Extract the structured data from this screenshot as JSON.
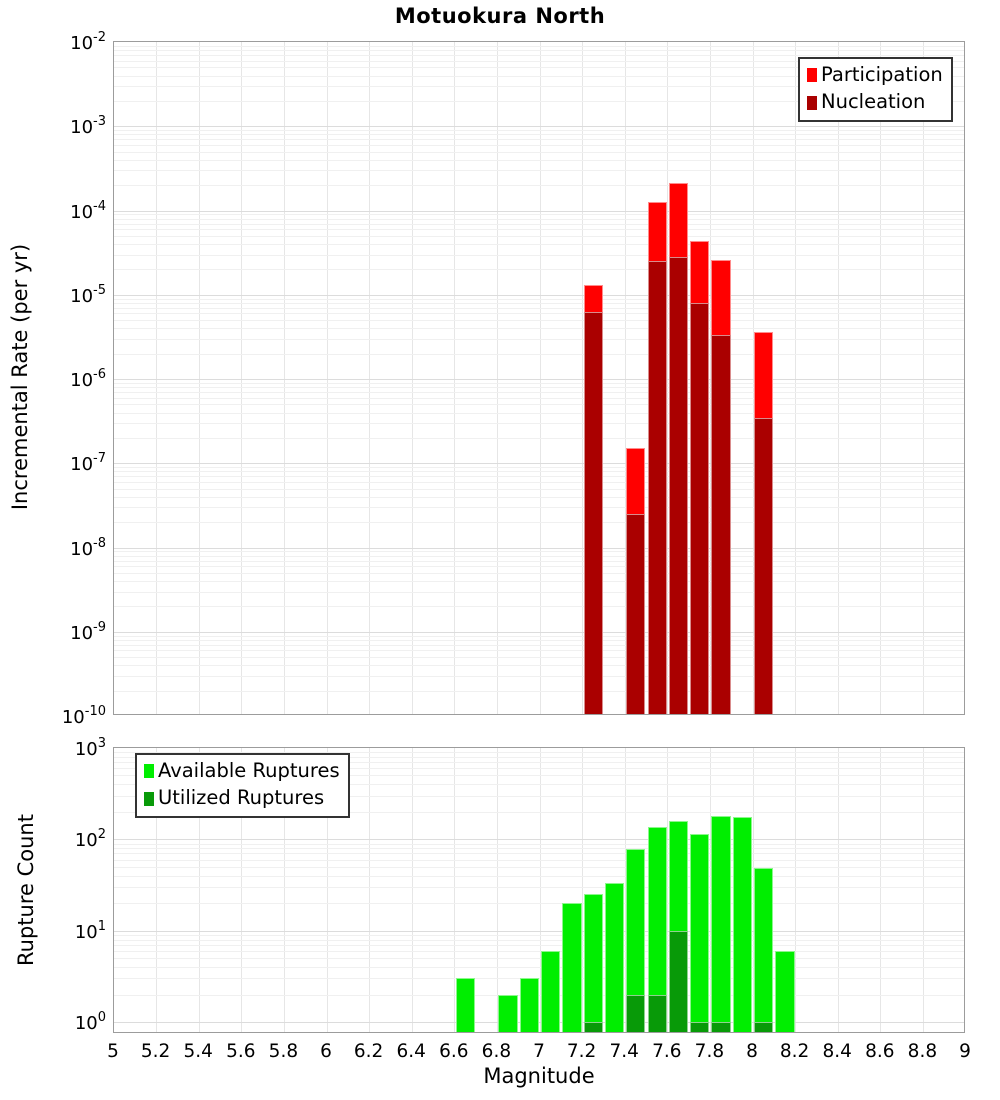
{
  "title": "Motuokura North",
  "colors": {
    "participation": "#FF0000",
    "nucleation": "#AA0000",
    "available": "#00EE00",
    "utilized": "#089A08",
    "grid_major": "#dcdcdc",
    "grid_minor": "#f0f0f0",
    "axis_border": "#9c9c9c"
  },
  "x_axis": {
    "label": "Magnitude",
    "min": 5,
    "max": 9,
    "tick_labels": [
      "5",
      "5.2",
      "5.4",
      "5.6",
      "5.8",
      "6",
      "6.2",
      "6.4",
      "6.6",
      "6.8",
      "7",
      "7.2",
      "7.4",
      "7.6",
      "7.8",
      "8",
      "8.2",
      "8.4",
      "8.6",
      "8.8",
      "9"
    ]
  },
  "chart_data": [
    {
      "panel": "incremental-rate",
      "type": "bar",
      "title": "Motuokura North",
      "ylabel": "Incremental Rate (per yr)",
      "xlabel": "",
      "yscale": "log",
      "ylim": [
        1e-10,
        0.01
      ],
      "xlim": [
        5,
        9
      ],
      "grid": true,
      "bin_width": 0.1,
      "legend_position": "top-right",
      "ytick_exponents": [
        -2,
        -3,
        -4,
        -5,
        -6,
        -7,
        -8,
        -9,
        -10
      ],
      "categories": [
        7.25,
        7.45,
        7.55,
        7.65,
        7.75,
        7.85,
        8.05
      ],
      "series": [
        {
          "name": "Participation",
          "color_key": "participation",
          "values": [
            1.3e-05,
            1.5e-07,
            0.000125,
            0.00021,
            4.4e-05,
            2.6e-05,
            3.6e-06
          ]
        },
        {
          "name": "Nucleation",
          "color_key": "nucleation",
          "values": [
            6.2e-06,
            2.5e-08,
            2.5e-05,
            2.8e-05,
            8e-06,
            3.3e-06,
            3.4e-07
          ]
        }
      ]
    },
    {
      "panel": "rupture-count",
      "type": "bar",
      "title": "",
      "ylabel": "Rupture Count",
      "xlabel": "Magnitude",
      "yscale": "log",
      "ylim": [
        1,
        1000
      ],
      "xlim": [
        5,
        9
      ],
      "grid": true,
      "bin_width": 0.1,
      "legend_position": "top-left",
      "ytick_exponents": [
        3,
        2,
        1,
        0
      ],
      "categories": [
        6.65,
        6.85,
        6.95,
        7.05,
        7.15,
        7.25,
        7.35,
        7.45,
        7.55,
        7.65,
        7.75,
        7.85,
        7.95,
        8.05,
        8.15
      ],
      "series": [
        {
          "name": "Available Ruptures",
          "color_key": "available",
          "values": [
            3,
            2,
            3,
            6,
            20,
            25,
            33,
            78,
            135,
            160,
            113,
            178,
            175,
            48,
            6
          ]
        },
        {
          "name": "Utilized Ruptures",
          "color_key": "utilized",
          "values": [
            0,
            0,
            0,
            0,
            0,
            1,
            0,
            2,
            2,
            10,
            1,
            1,
            0,
            1,
            0
          ]
        }
      ]
    }
  ]
}
